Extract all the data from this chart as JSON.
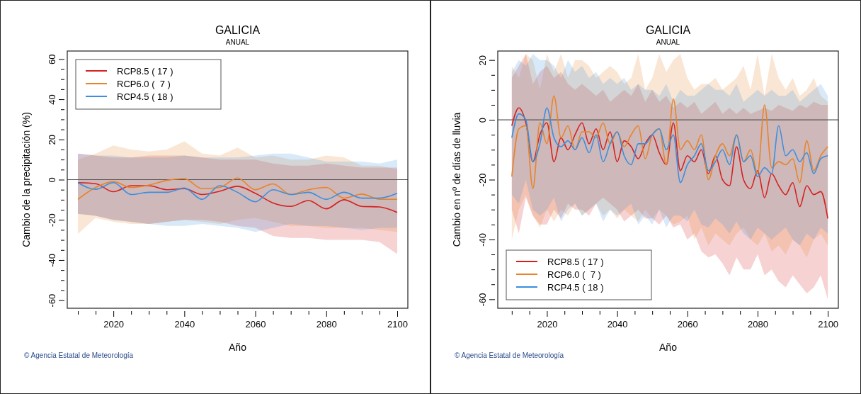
{
  "chart_data": [
    {
      "type": "line",
      "title": "GALICIA",
      "subtitle": "ANUAL",
      "xlabel": "Año",
      "ylabel": "Cambio de la precipitación (%)",
      "legend": "top left",
      "xlim": [
        2007,
        2103
      ],
      "ylim": [
        -64,
        64
      ],
      "xticks": [
        {
          "value": 2010,
          "label": null
        },
        {
          "value": 2015,
          "label": null
        },
        2020,
        {
          "value": 2025,
          "label": null
        },
        {
          "value": 2030,
          "label": null
        },
        {
          "value": 2035,
          "label": null
        },
        2040,
        {
          "value": 2045,
          "label": null
        },
        {
          "value": 2050,
          "label": null
        },
        {
          "value": 2055,
          "label": null
        },
        2060,
        {
          "value": 2065,
          "label": null
        },
        {
          "value": 2070,
          "label": null
        },
        {
          "value": 2075,
          "label": null
        },
        2080,
        {
          "value": 2085,
          "label": null
        },
        {
          "value": 2090,
          "label": null
        },
        {
          "value": 2095,
          "label": null
        },
        2100
      ],
      "yticks": [
        -60,
        {
          "value": -55,
          "label": null
        },
        {
          "value": -50,
          "label": null
        },
        {
          "value": -45,
          "label": null
        },
        -40,
        {
          "value": -35,
          "label": null
        },
        {
          "value": -30,
          "label": null
        },
        {
          "value": -25,
          "label": null
        },
        -20,
        {
          "value": -15,
          "label": null
        },
        {
          "value": -10,
          "label": null
        },
        {
          "value": -5,
          "label": null
        },
        0,
        {
          "value": 5,
          "label": null
        },
        {
          "value": 10,
          "label": null
        },
        {
          "value": 15,
          "label": null
        },
        20,
        {
          "value": 25,
          "label": null
        },
        {
          "value": 30,
          "label": null
        },
        {
          "value": 35,
          "label": null
        },
        40,
        {
          "value": 45,
          "label": null
        },
        {
          "value": 50,
          "label": null
        },
        {
          "value": 55,
          "label": null
        },
        60
      ],
      "ref_lines": [
        {
          "axis": "y",
          "value": 0,
          "color": "#555555"
        }
      ],
      "annotations": [
        "© Agencia Estatal de Meteorología"
      ],
      "series": [
        {
          "name": "RCP8.5 ( 17 )",
          "color": "#d62020",
          "x": [
            2010,
            2015,
            2020,
            2025,
            2030,
            2035,
            2040,
            2045,
            2050,
            2055,
            2060,
            2065,
            2070,
            2075,
            2080,
            2085,
            2090,
            2095,
            2100
          ],
          "values": [
            -1.5,
            -2,
            -6,
            -3,
            -3,
            -5,
            -4.5,
            -7.4,
            -5.7,
            -3.3,
            -6.8,
            -11.6,
            -13.3,
            -10.4,
            -14.5,
            -10,
            -13.3,
            -13.6,
            -16.3
          ],
          "upper": [
            13,
            12,
            11,
            11,
            12,
            12,
            12,
            11,
            10,
            10,
            10,
            8,
            7,
            7,
            8,
            7,
            6,
            6,
            6
          ],
          "lower": [
            -17,
            -18,
            -20,
            -21,
            -22,
            -21,
            -20,
            -20,
            -21,
            -23,
            -24,
            -28,
            -29,
            -29,
            -30,
            -30,
            -30,
            -31,
            -37
          ]
        },
        {
          "name": "RCP6.0 (  7 )",
          "color": "#e8832a",
          "x": [
            2010,
            2015,
            2020,
            2025,
            2030,
            2035,
            2040,
            2045,
            2050,
            2055,
            2060,
            2065,
            2070,
            2075,
            2080,
            2085,
            2090,
            2095,
            2100
          ],
          "values": [
            -9.8,
            -3.9,
            -1,
            -3.9,
            -2.7,
            -0.4,
            0.5,
            -4.5,
            -3.9,
            0.8,
            -5,
            -2.1,
            -7.4,
            -5,
            -3.9,
            -9.2,
            -7.2,
            -9.8,
            -9.8
          ],
          "upper": [
            10,
            13,
            17,
            15,
            14,
            15,
            19,
            13,
            12,
            16,
            11,
            12,
            10,
            10,
            12,
            11,
            7,
            7,
            5
          ],
          "lower": [
            -27,
            -19,
            -21,
            -22,
            -22,
            -21,
            -20,
            -21,
            -22,
            -20,
            -19,
            -21,
            -23,
            -23,
            -24,
            -24,
            -24,
            -25,
            -26
          ]
        },
        {
          "name": "RCP4.5 ( 18 )",
          "color": "#3a8fe0",
          "x": [
            2010,
            2015,
            2020,
            2025,
            2030,
            2035,
            2040,
            2045,
            2050,
            2055,
            2060,
            2065,
            2070,
            2075,
            2080,
            2085,
            2090,
            2095,
            2100
          ],
          "values": [
            -1.5,
            -4.8,
            -1.5,
            -7.4,
            -6.3,
            -6.3,
            -4.2,
            -9.8,
            -3,
            -6.3,
            -11,
            -5,
            -7.4,
            -6.3,
            -9.8,
            -6.3,
            -9.2,
            -9.2,
            -6.8
          ],
          "upper": [
            13,
            12,
            12,
            11,
            11,
            11,
            12,
            11,
            11,
            11,
            12,
            13,
            13,
            11,
            9,
            9,
            9,
            8,
            10
          ],
          "lower": [
            -17,
            -18,
            -20,
            -21,
            -22,
            -23,
            -23,
            -22,
            -23,
            -24,
            -26,
            -24,
            -22,
            -23,
            -23,
            -24,
            -25,
            -24,
            -24
          ]
        }
      ]
    },
    {
      "type": "line",
      "title": "GALICIA",
      "subtitle": "ANUAL",
      "xlabel": "Año",
      "ylabel": "Cambio en nº de días de lluvia",
      "legend": "bottom left",
      "xlim": [
        2006,
        2103
      ],
      "ylim": [
        -63,
        23
      ],
      "xticks": [
        {
          "value": 2010,
          "label": null
        },
        {
          "value": 2015,
          "label": null
        },
        2020,
        {
          "value": 2025,
          "label": null
        },
        {
          "value": 2030,
          "label": null
        },
        {
          "value": 2035,
          "label": null
        },
        2040,
        {
          "value": 2045,
          "label": null
        },
        {
          "value": 2050,
          "label": null
        },
        {
          "value": 2055,
          "label": null
        },
        2060,
        {
          "value": 2065,
          "label": null
        },
        {
          "value": 2070,
          "label": null
        },
        {
          "value": 2075,
          "label": null
        },
        2080,
        {
          "value": 2085,
          "label": null
        },
        {
          "value": 2090,
          "label": null
        },
        {
          "value": 2095,
          "label": null
        },
        2100
      ],
      "yticks": [
        -60,
        {
          "value": -55,
          "label": null
        },
        {
          "value": -50,
          "label": null
        },
        {
          "value": -45,
          "label": null
        },
        -40,
        {
          "value": -35,
          "label": null
        },
        {
          "value": -30,
          "label": null
        },
        {
          "value": -25,
          "label": null
        },
        -20,
        {
          "value": -15,
          "label": null
        },
        {
          "value": -10,
          "label": null
        },
        {
          "value": -5,
          "label": null
        },
        0,
        {
          "value": 5,
          "label": null
        },
        {
          "value": 10,
          "label": null
        },
        {
          "value": 15,
          "label": null
        },
        20
      ],
      "ref_lines": [
        {
          "axis": "y",
          "value": 0,
          "color": "#555555"
        }
      ],
      "annotations": [
        "© Agencia Estatal de Meteorología"
      ],
      "series": [
        {
          "name": "RCP8.5 ( 17 )",
          "color": "#d62020",
          "x": [
            2010,
            2012,
            2014,
            2016,
            2018,
            2020,
            2022,
            2024,
            2026,
            2028,
            2030,
            2032,
            2034,
            2036,
            2038,
            2040,
            2042,
            2044,
            2046,
            2048,
            2050,
            2052,
            2054,
            2056,
            2058,
            2060,
            2062,
            2064,
            2066,
            2068,
            2070,
            2072,
            2074,
            2076,
            2078,
            2080,
            2082,
            2084,
            2086,
            2088,
            2090,
            2092,
            2094,
            2096,
            2098,
            2100
          ],
          "values": [
            -2,
            4,
            -1,
            -14,
            -5,
            -1,
            -14,
            -6,
            -10,
            -5,
            -1,
            -8,
            -3,
            -10,
            -4,
            -14,
            -7,
            -9,
            -13,
            -8,
            -5,
            -11,
            -15,
            -1,
            -17,
            -12,
            -14,
            -10,
            -18,
            -12,
            -20,
            -22,
            -9,
            -20,
            -23,
            -17,
            -26,
            -18,
            -22,
            -25,
            -21,
            -29,
            -22,
            -25,
            -24,
            -33
          ],
          "upper": [
            14,
            18,
            22,
            12,
            16,
            18,
            14,
            16,
            12,
            10,
            12,
            10,
            8,
            10,
            6,
            8,
            10,
            8,
            12,
            6,
            10,
            6,
            8,
            4,
            6,
            4,
            6,
            2,
            4,
            6,
            2,
            4,
            2,
            4,
            2,
            3,
            4,
            3,
            5,
            4,
            3,
            5,
            4,
            6,
            5,
            5
          ],
          "lower": [
            -30,
            -38,
            -26,
            -32,
            -35,
            -35,
            -30,
            -33,
            -28,
            -30,
            -30,
            -32,
            -28,
            -26,
            -28,
            -30,
            -34,
            -32,
            -30,
            -33,
            -33,
            -35,
            -32,
            -36,
            -35,
            -40,
            -38,
            -44,
            -46,
            -45,
            -48,
            -52,
            -46,
            -50,
            -50,
            -45,
            -52,
            -50,
            -54,
            -56,
            -52,
            -55,
            -58,
            -56,
            -52,
            -60
          ]
        },
        {
          "name": "RCP6.0 (  7 )",
          "color": "#e8832a",
          "x": [
            2010,
            2012,
            2014,
            2016,
            2018,
            2020,
            2022,
            2024,
            2026,
            2028,
            2030,
            2032,
            2034,
            2036,
            2038,
            2040,
            2042,
            2044,
            2046,
            2048,
            2050,
            2052,
            2054,
            2056,
            2058,
            2060,
            2062,
            2064,
            2066,
            2068,
            2070,
            2072,
            2074,
            2076,
            2078,
            2080,
            2082,
            2084,
            2086,
            2088,
            2090,
            2092,
            2094,
            2096,
            2098,
            2100
          ],
          "values": [
            -19,
            -3,
            -2,
            -23,
            -1,
            -8,
            8,
            -6,
            -2,
            -10,
            -4,
            -4,
            -6,
            -1,
            -8,
            -4,
            -9,
            -5,
            -2,
            -13,
            -5,
            -3,
            -15,
            7,
            -10,
            -7,
            -10,
            -5,
            -20,
            -12,
            -8,
            -12,
            -5,
            -14,
            -10,
            -18,
            5,
            -16,
            -14,
            -15,
            -13,
            -21,
            -7,
            -17,
            -12,
            -9
          ],
          "upper": [
            18,
            14,
            22,
            20,
            10,
            22,
            16,
            22,
            14,
            20,
            20,
            18,
            14,
            16,
            18,
            16,
            12,
            14,
            22,
            10,
            14,
            22,
            16,
            20,
            22,
            14,
            10,
            12,
            12,
            14,
            10,
            12,
            14,
            18,
            10,
            22,
            8,
            22,
            14,
            10,
            14,
            8,
            10,
            14,
            8,
            6
          ],
          "lower": [
            -40,
            -30,
            -25,
            -32,
            -36,
            -30,
            -34,
            -30,
            -32,
            -28,
            -32,
            -30,
            -28,
            -32,
            -30,
            -33,
            -30,
            -32,
            -34,
            -30,
            -33,
            -30,
            -32,
            -35,
            -34,
            -32,
            -40,
            -36,
            -42,
            -38,
            -40,
            -42,
            -38,
            -36,
            -40,
            -42,
            -38,
            -44,
            -42,
            -45,
            -40,
            -42,
            -46,
            -40,
            -38,
            -42
          ]
        },
        {
          "name": "RCP4.5 ( 18 )",
          "color": "#3a8fe0",
          "x": [
            2010,
            2012,
            2014,
            2016,
            2018,
            2020,
            2022,
            2024,
            2026,
            2028,
            2030,
            2032,
            2034,
            2036,
            2038,
            2040,
            2042,
            2044,
            2046,
            2048,
            2050,
            2052,
            2054,
            2056,
            2058,
            2060,
            2062,
            2064,
            2066,
            2068,
            2070,
            2072,
            2074,
            2076,
            2078,
            2080,
            2082,
            2084,
            2086,
            2088,
            2090,
            2092,
            2094,
            2096,
            2098,
            2100
          ],
          "values": [
            -6,
            2,
            0,
            -14,
            -8,
            4,
            -6,
            -9,
            -7,
            -10,
            -6,
            -11,
            -5,
            -14,
            -8,
            -4,
            -12,
            -15,
            -8,
            -8,
            -5,
            -3,
            -10,
            -5,
            -21,
            -15,
            -12,
            -8,
            -17,
            -14,
            -10,
            -15,
            -5,
            -14,
            -12,
            -19,
            -16,
            -18,
            -2,
            -12,
            -10,
            -14,
            -11,
            -18,
            -13,
            -12
          ],
          "upper": [
            16,
            20,
            18,
            22,
            20,
            20,
            18,
            14,
            20,
            16,
            18,
            14,
            16,
            12,
            14,
            12,
            14,
            10,
            12,
            10,
            10,
            8,
            12,
            6,
            10,
            8,
            8,
            10,
            12,
            10,
            10,
            8,
            12,
            6,
            8,
            10,
            8,
            10,
            8,
            8,
            10,
            6,
            8,
            10,
            12,
            8
          ],
          "lower": [
            -25,
            -28,
            -20,
            -30,
            -32,
            -30,
            -26,
            -34,
            -30,
            -28,
            -32,
            -30,
            -28,
            -34,
            -30,
            -32,
            -30,
            -28,
            -35,
            -32,
            -35,
            -30,
            -36,
            -32,
            -32,
            -34,
            -30,
            -35,
            -36,
            -33,
            -35,
            -38,
            -34,
            -38,
            -40,
            -36,
            -38,
            -40,
            -38,
            -36,
            -40,
            -42,
            -38,
            -40,
            -36,
            -38
          ]
        }
      ]
    }
  ]
}
